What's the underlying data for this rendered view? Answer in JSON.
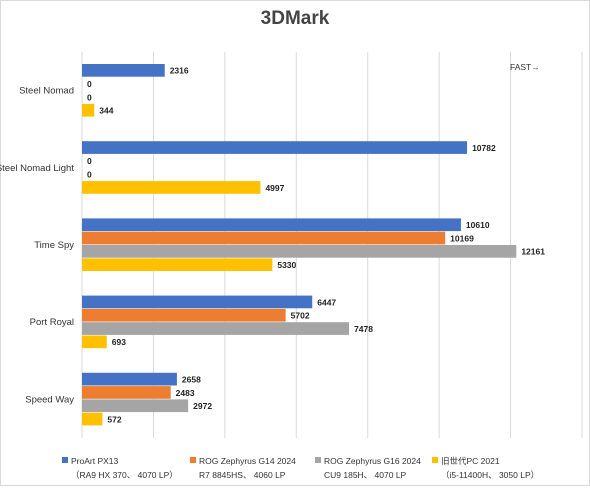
{
  "chart_data": {
    "type": "bar",
    "orientation": "horizontal",
    "title": "3DMark",
    "annotation": "FAST→",
    "categories": [
      "Steel Nomad",
      "Steel Nomad Light",
      "Time Spy",
      "Port Royal",
      "Speed Way"
    ],
    "series": [
      {
        "name": "ProArt PX13",
        "subname": "（RA9 HX 370、 4070 LP）",
        "color": "#4472C4",
        "values": [
          2316,
          10782,
          10610,
          6447,
          2658
        ]
      },
      {
        "name": "ROG Zephyrus G14 2024",
        "subname": "R7 8845HS、 4060 LP",
        "color": "#ED7D31",
        "values": [
          0,
          0,
          10169,
          5702,
          2483
        ]
      },
      {
        "name": "ROG Zephyrus G16 2024",
        "subname": "CU9 185H、 4070 LP",
        "color": "#A5A5A5",
        "values": [
          0,
          0,
          12161,
          7478,
          2972
        ]
      },
      {
        "name": "旧世代PC 2021",
        "subname": "（i5-11400H、 3050 LP）",
        "color": "#FFC000",
        "values": [
          344,
          4997,
          5330,
          693,
          572
        ]
      }
    ],
    "xlim": [
      0,
      14000
    ],
    "x_gridline_step": 2000,
    "grid": true,
    "legend_position": "bottom"
  }
}
